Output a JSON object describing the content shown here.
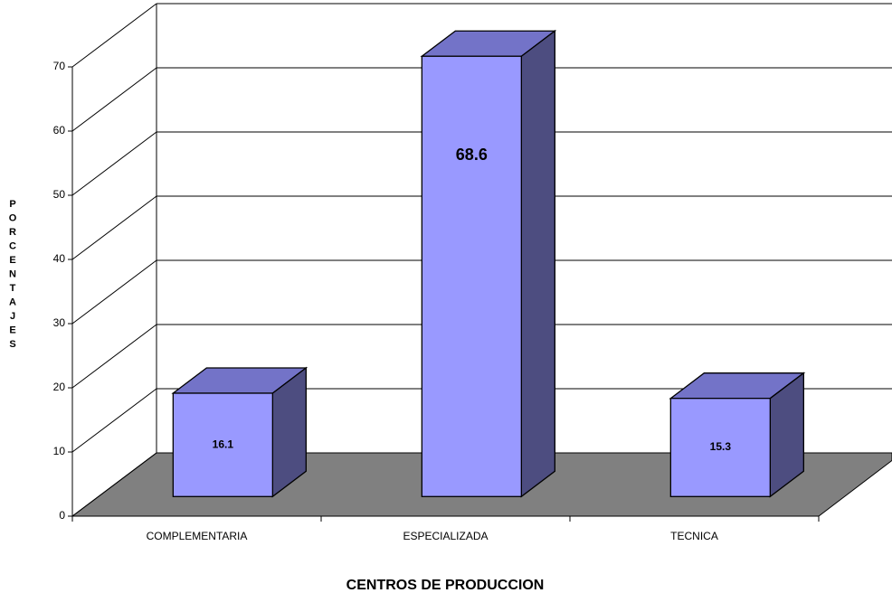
{
  "chart_data": {
    "type": "bar3d",
    "x_label": "CENTROS DE PRODUCCION",
    "y_label": "PORCENTAJES",
    "categories": [
      "COMPLEMENTARIA",
      "ESPECIALIZADA",
      "TECNICA"
    ],
    "values": [
      16.1,
      68.6,
      15.3
    ],
    "color": "#9999ff",
    "ylim": [
      0,
      70
    ],
    "yticks": [
      0,
      10,
      20,
      30,
      40,
      50,
      60,
      70
    ],
    "grid": true
  }
}
